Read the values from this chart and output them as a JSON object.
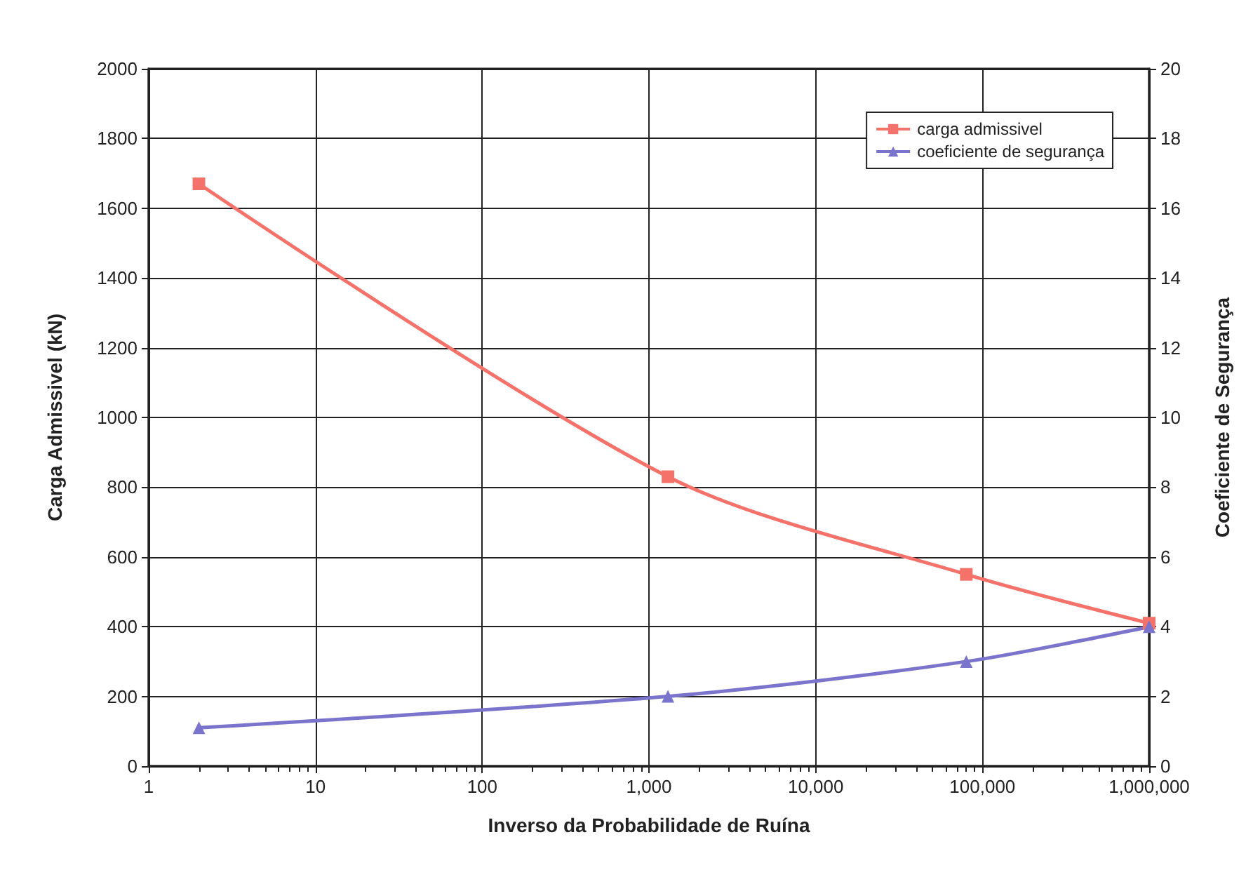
{
  "chart_data": {
    "type": "line",
    "xlabel": "Inverso da Probabilidade de Ruína",
    "ylabel": "Carga Admissivel (kN)",
    "y2label": "Coeficiente de Segurança",
    "log": "x",
    "xlim": [
      1,
      1000000
    ],
    "xticks": [
      1,
      10,
      100,
      {
        "value": 1000,
        "label": "1,000"
      },
      {
        "value": 10000,
        "label": "10,000"
      },
      {
        "value": 100000,
        "label": "100,000"
      },
      {
        "value": 1000000,
        "label": "1,000,000"
      }
    ],
    "ylim": [
      0,
      2000
    ],
    "yticks": [
      0,
      200,
      400,
      600,
      800,
      1000,
      1200,
      1400,
      1600,
      1800,
      2000
    ],
    "y2lim": [
      0,
      20
    ],
    "y2ticks": [
      0,
      2,
      4,
      6,
      8,
      10,
      12,
      14,
      16,
      18,
      20
    ],
    "x": [
      2,
      1300,
      80000,
      1000000
    ],
    "series": [
      {
        "name": "carga admissivel",
        "color": "#f4726a",
        "marker": "square",
        "values": [
          1670,
          830,
          550,
          410
        ]
      },
      {
        "name": "coeficiente de segurança",
        "color": "#7b74cc",
        "marker": "triangle",
        "axis": "y2",
        "values": [
          1.1,
          2,
          3,
          4
        ]
      }
    ],
    "grid": true,
    "legend": "top right"
  }
}
